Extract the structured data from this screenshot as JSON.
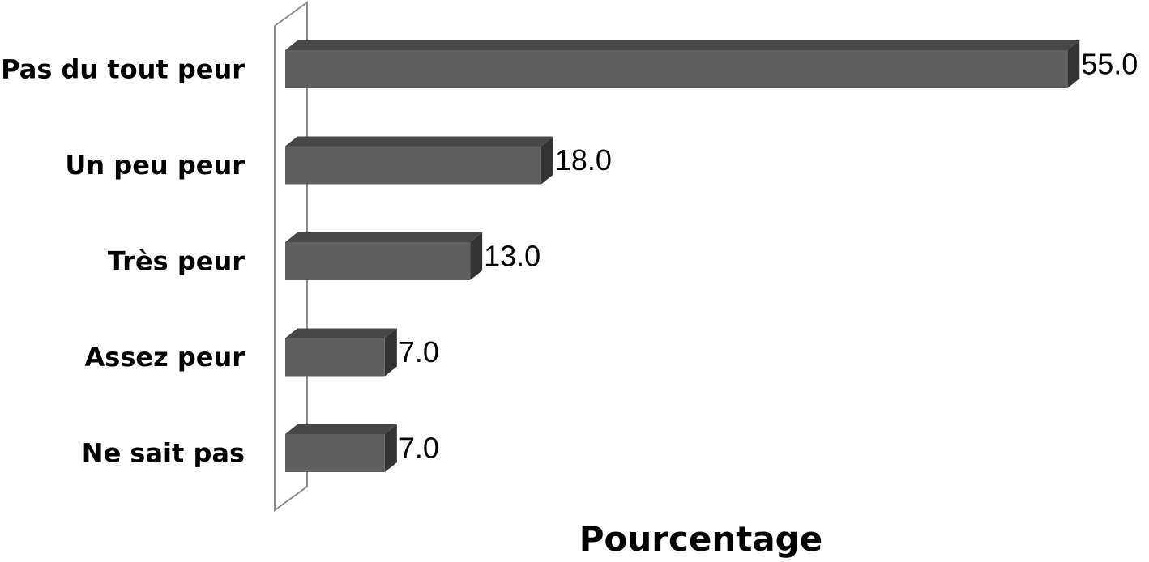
{
  "chart_data": {
    "type": "bar",
    "orientation": "horizontal",
    "categories": [
      "Pas du tout peur",
      "Un peu peur",
      "Très peur",
      "Assez peur",
      "Ne sait pas"
    ],
    "values": [
      55.0,
      18.0,
      13.0,
      7.0,
      7.0
    ],
    "value_labels": [
      "55.0",
      "18.0",
      "13.0",
      "7.0",
      "7.0"
    ],
    "xlabel": "Pourcentage",
    "ylabel": "",
    "xlim": [
      0,
      55
    ],
    "grid": false,
    "legend": "none",
    "three_d": true,
    "colors": {
      "bar_front": "#5f5f5f",
      "bar_top": "#474747",
      "bar_side": "#333333",
      "wall_stroke": "#8c8c8c"
    }
  }
}
